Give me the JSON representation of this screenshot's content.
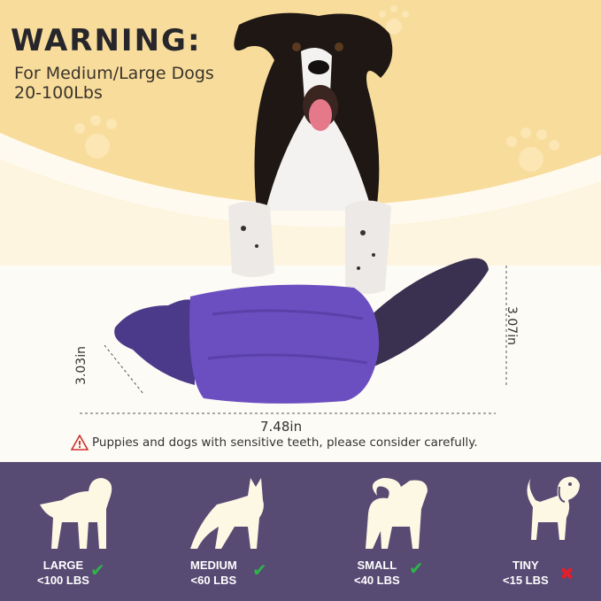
{
  "warning": {
    "title": "WARNING:",
    "line1": "For Medium/Large Dogs",
    "line2": "20-100Lbs"
  },
  "dimensions": {
    "height": "3.07in",
    "width": "7.48in",
    "diameter": "3.03in"
  },
  "caution": {
    "icon": "warning-triangle-icon",
    "text": "Puppies and dogs with sensitive teeth, please consider carefully."
  },
  "colors": {
    "background_top": "#f8dc9b",
    "band": "#574a73",
    "toy": "#6b4fc0",
    "check": "#2fb34a",
    "cross": "#e0202a"
  },
  "sizes": [
    {
      "name": "LARGE",
      "weight": "<100 LBS",
      "suitable": true
    },
    {
      "name": "MEDIUM",
      "weight": "<60 LBS",
      "suitable": true
    },
    {
      "name": "SMALL",
      "weight": "<40 LBS",
      "suitable": true
    },
    {
      "name": "TINY",
      "weight": "<15 LBS",
      "suitable": false
    }
  ]
}
